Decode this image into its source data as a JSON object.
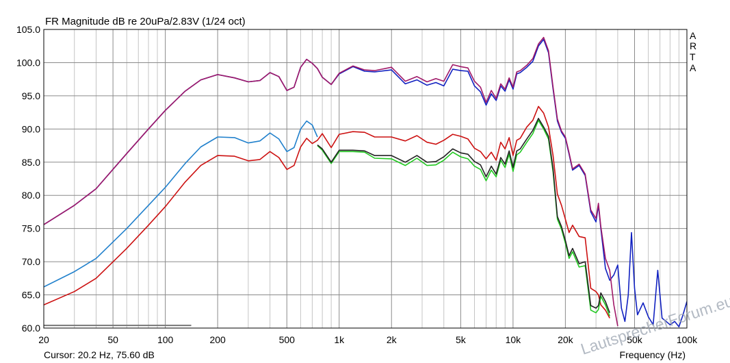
{
  "title": "FR Magnitude dB re 20uPa/2.83V (1/24 oct)",
  "side_label": [
    "A",
    "R",
    "T",
    "A"
  ],
  "cursor_text": "Cursor: 20.2 Hz, 75.60 dB",
  "watermark": "LautsprecherForum.eu",
  "chart_data": {
    "type": "line",
    "title": "FR Magnitude dB re 20uPa/2.83V (1/24 oct)",
    "xlabel": "Frequency (Hz)",
    "ylabel": "",
    "x_scale": "log",
    "xlim": [
      20,
      100000
    ],
    "ylim": [
      60,
      105
    ],
    "grid": true,
    "x_ticks": [
      {
        "v": 20,
        "label": "20"
      },
      {
        "v": 50,
        "label": "50"
      },
      {
        "v": 100,
        "label": "100"
      },
      {
        "v": 200,
        "label": "200"
      },
      {
        "v": 500,
        "label": "500"
      },
      {
        "v": 1000,
        "label": "1k"
      },
      {
        "v": 2000,
        "label": "2k"
      },
      {
        "v": 5000,
        "label": "5k"
      },
      {
        "v": 10000,
        "label": "10k"
      },
      {
        "v": 20000,
        "label": "20k"
      },
      {
        "v": 50000,
        "label": "50k"
      },
      {
        "v": 100000,
        "label": "100k"
      }
    ],
    "y_ticks": [
      {
        "v": 60,
        "label": "60.0"
      },
      {
        "v": 65,
        "label": "65.0"
      },
      {
        "v": 70,
        "label": "70.0"
      },
      {
        "v": 75,
        "label": "75.0"
      },
      {
        "v": 80,
        "label": "80.0"
      },
      {
        "v": 85,
        "label": "85.0"
      },
      {
        "v": 90,
        "label": "90.0"
      },
      {
        "v": 95,
        "label": "95.0"
      },
      {
        "v": 100,
        "label": "100.0"
      },
      {
        "v": 105,
        "label": "105.0"
      }
    ],
    "cursor_line": {
      "x_from": 20,
      "x_to": 141,
      "y": 60.4,
      "color": "#777777"
    },
    "series": [
      {
        "color": "#2080cc",
        "x": [
          20,
          30,
          40,
          60,
          80,
          100,
          130,
          160,
          200,
          250,
          300,
          350,
          400,
          450,
          500,
          550,
          600,
          650,
          700,
          750
        ],
        "y": [
          66.2,
          68.5,
          70.5,
          75,
          78.5,
          81.2,
          84.8,
          87.3,
          88.8,
          88.7,
          87.9,
          88.2,
          89.4,
          88.5,
          86.6,
          87.2,
          90,
          91.2,
          90.6,
          88.8
        ]
      },
      {
        "color": "#cc1010",
        "x": [
          20,
          30,
          40,
          60,
          80,
          100,
          130,
          160,
          200,
          250,
          300,
          350,
          400,
          450,
          500,
          550,
          600,
          650,
          700,
          750,
          800,
          900,
          1000,
          1200,
          1400,
          1600,
          2000,
          2400,
          2800,
          3200,
          3600,
          4000,
          4500,
          5000,
          5500,
          6000,
          6500,
          7000,
          7500,
          8000,
          8500,
          9000,
          9500,
          10000,
          10500,
          11000,
          12000,
          13000,
          14000,
          15000,
          16000,
          17000,
          18000,
          19000,
          20000,
          21000,
          22000,
          24000,
          26000,
          28000,
          30000,
          31000,
          32000,
          34000,
          36000
        ],
        "y": [
          63.5,
          65.5,
          67.5,
          72,
          75.5,
          78.3,
          82,
          84.5,
          86,
          85.9,
          85.2,
          85.4,
          86.6,
          85.7,
          83.9,
          84.5,
          87.3,
          88.6,
          87.8,
          88.3,
          89.3,
          87.2,
          89.2,
          89.6,
          89.5,
          88.8,
          88.8,
          88.2,
          89,
          88,
          87.7,
          88.3,
          89.2,
          88.9,
          88.5,
          87.1,
          86.6,
          85.5,
          86.5,
          85.3,
          88,
          87,
          88.7,
          86,
          88.3,
          88.6,
          90.3,
          91.3,
          93.4,
          92.4,
          90.3,
          86,
          80.2,
          78.5,
          76.4,
          74.4,
          75.5,
          73.8,
          73.6,
          66,
          65.5,
          65,
          63.5,
          62.7,
          61.5
        ]
      },
      {
        "color": "#20c820",
        "x": [
          750,
          800,
          900,
          1000,
          1200,
          1400,
          1600,
          2000,
          2400,
          2800,
          3200,
          3600,
          4000,
          4500,
          5000,
          5500,
          6000,
          6500,
          7000,
          7500,
          8000,
          8500,
          9000,
          9500,
          10000,
          10500,
          11000,
          12000,
          13000,
          14000,
          15000,
          16000,
          17000,
          18000,
          19000,
          20000,
          21000,
          22000,
          24000,
          26000,
          28000,
          30000,
          31000,
          32000,
          34000,
          36000
        ],
        "y": [
          87.5,
          86.8,
          84.8,
          86.6,
          86.6,
          86.5,
          85.6,
          85.5,
          84.5,
          85.6,
          84.5,
          84.6,
          85.3,
          86.5,
          85.8,
          85.5,
          84.4,
          83.9,
          82.2,
          83.8,
          82.8,
          85.3,
          84.2,
          86.2,
          83.6,
          86.1,
          86.5,
          88,
          89.3,
          91.3,
          90,
          88.5,
          83.5,
          76.4,
          74.9,
          72.8,
          70.5,
          71.5,
          69.2,
          69.4,
          62.7,
          62.3,
          62.8,
          64.8,
          63.5,
          61.8
        ]
      },
      {
        "color": "#222222",
        "x": [
          750,
          800,
          900,
          1000,
          1200,
          1400,
          1600,
          2000,
          2400,
          2800,
          3200,
          3600,
          4000,
          4500,
          5000,
          5500,
          6000,
          6500,
          7000,
          7500,
          8000,
          8500,
          9000,
          9500,
          10000,
          10500,
          11000,
          12000,
          13000,
          14000,
          15000,
          16000,
          17000,
          18000,
          19000,
          20000,
          21000,
          22000,
          24000,
          26000,
          28000,
          30000,
          31000,
          32000,
          34000,
          36000
        ],
        "y": [
          87.6,
          87,
          85,
          86.8,
          86.8,
          86.7,
          86,
          86,
          85,
          86,
          85,
          85.1,
          85.8,
          87,
          86.4,
          86.2,
          85.1,
          84.6,
          82.8,
          84.4,
          83.2,
          85.7,
          84.7,
          86.7,
          84.2,
          86.7,
          87,
          88.5,
          89.8,
          91.6,
          90.3,
          88.9,
          84,
          76.8,
          75.3,
          73.2,
          70.9,
          72,
          69.7,
          70,
          63.4,
          63,
          63.4,
          65.3,
          64,
          62.3
        ]
      },
      {
        "color": "#1020c0",
        "x": [
          20,
          30,
          40,
          60,
          80,
          100,
          130,
          160,
          200,
          250,
          300,
          350,
          400,
          450,
          500,
          550,
          600,
          650,
          700,
          750,
          800,
          900,
          1000,
          1200,
          1400,
          1600,
          2000,
          2400,
          2800,
          3200,
          3600,
          4000,
          4500,
          5000,
          5500,
          6000,
          6500,
          7000,
          7500,
          8000,
          8500,
          9000,
          9500,
          10000,
          10500,
          11000,
          12000,
          13000,
          14000,
          15000,
          16000,
          17000,
          18000,
          19000,
          20000,
          21000,
          22000,
          24000,
          26000,
          28000,
          30000,
          31000,
          32000,
          34000,
          36000,
          38000,
          40000,
          42000,
          44000,
          46000,
          48000,
          50000,
          52000,
          56000,
          60000,
          64000,
          68000,
          72000,
          76000,
          80000,
          85000,
          90000,
          95000,
          100000
        ],
        "y": [
          75.6,
          78.5,
          81,
          86.3,
          90,
          92.8,
          95.7,
          97.4,
          98.2,
          97.7,
          97.1,
          97.3,
          98.5,
          97.9,
          95.8,
          96.3,
          99.3,
          100.5,
          99.9,
          99.1,
          97.8,
          96.7,
          98.3,
          99.4,
          98.7,
          98.6,
          98.9,
          96.8,
          97.4,
          96.6,
          97,
          96.5,
          99,
          98.8,
          98.7,
          96.5,
          95.6,
          93.6,
          95.3,
          94.3,
          96.5,
          95.7,
          97.4,
          96,
          98.3,
          98.5,
          99.3,
          100.2,
          102.5,
          103.5,
          101.5,
          96,
          91.2,
          89.5,
          88.6,
          86.2,
          83.8,
          84.5,
          83,
          77.5,
          76,
          78.5,
          75,
          69,
          67.2,
          68,
          69.5,
          63,
          61,
          65,
          74.4,
          66,
          62,
          63.8,
          61.7,
          60.5,
          68.7,
          61.5,
          61,
          60.5,
          61,
          60.2,
          62,
          64
        ]
      },
      {
        "color": "#a01868",
        "x": [
          20,
          30,
          40,
          60,
          80,
          100,
          130,
          160,
          200,
          250,
          300,
          350,
          400,
          450,
          500,
          550,
          600,
          650,
          700,
          750,
          800,
          900,
          1000,
          1200,
          1400,
          1600,
          2000,
          2400,
          2800,
          3200,
          3600,
          4000,
          4500,
          5000,
          5500,
          6000,
          6500,
          7000,
          7500,
          8000,
          8500,
          9000,
          9500,
          10000,
          10500,
          11000,
          12000,
          13000,
          14000,
          15000,
          16000,
          17000,
          18000,
          19000,
          20000,
          21000,
          22000,
          24000,
          26000,
          28000,
          30000,
          31000,
          32000,
          34000,
          36000,
          38000,
          40000
        ],
        "y": [
          75.6,
          78.5,
          81,
          86.3,
          90,
          92.8,
          95.7,
          97.4,
          98.2,
          97.7,
          97.1,
          97.3,
          98.5,
          97.9,
          95.8,
          96.3,
          99.3,
          100.5,
          99.9,
          99.1,
          97.8,
          96.7,
          98.4,
          99.5,
          98.9,
          98.8,
          99.3,
          97.2,
          97.9,
          97.1,
          97.6,
          97.2,
          99.7,
          99.4,
          99.2,
          97.2,
          96.3,
          94,
          95.8,
          94.6,
          96.8,
          96,
          97.7,
          96.3,
          98.6,
          98.8,
          99.6,
          100.6,
          102.8,
          103.8,
          101.8,
          96.3,
          91.5,
          89.7,
          88.8,
          86.4,
          84,
          84.7,
          83.2,
          77.8,
          76.5,
          78.8,
          75.3,
          70.5,
          68.7,
          63.5,
          60.3
        ]
      }
    ]
  }
}
